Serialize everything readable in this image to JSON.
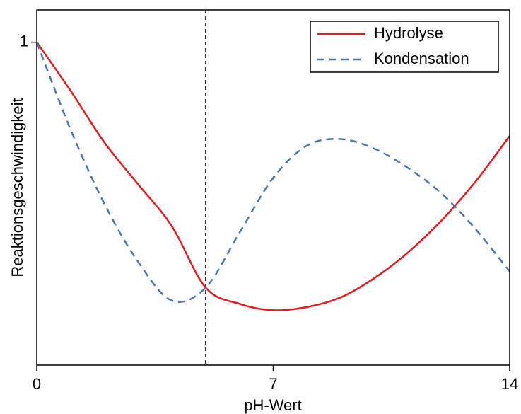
{
  "chart_data": {
    "type": "line",
    "x_label": "pH-Wert",
    "y_label": "Reaktionsgeschwindigkeit",
    "x": [
      0,
      1,
      2,
      3,
      4,
      5,
      6,
      7,
      8,
      9,
      10,
      11,
      12,
      13,
      14
    ],
    "series": [
      {
        "name": "Hydrolyse",
        "color": "#e41a1c",
        "dash": "solid",
        "values": [
          1.0,
          0.85,
          0.69,
          0.56,
          0.43,
          0.24,
          0.19,
          0.17,
          0.18,
          0.21,
          0.27,
          0.35,
          0.45,
          0.57,
          0.71
        ]
      },
      {
        "name": "Kondensation",
        "color": "#4a76b0",
        "dash": "dashed",
        "values": [
          1.0,
          0.73,
          0.5,
          0.32,
          0.2,
          0.24,
          0.41,
          0.58,
          0.68,
          0.7,
          0.67,
          0.61,
          0.53,
          0.42,
          0.29
        ]
      }
    ],
    "vline": 5,
    "xlim": [
      0,
      14
    ],
    "xticks": [
      0,
      7,
      14
    ],
    "ylim": [
      0,
      1.1
    ],
    "yticks": [
      1
    ],
    "legend": "upper right"
  }
}
